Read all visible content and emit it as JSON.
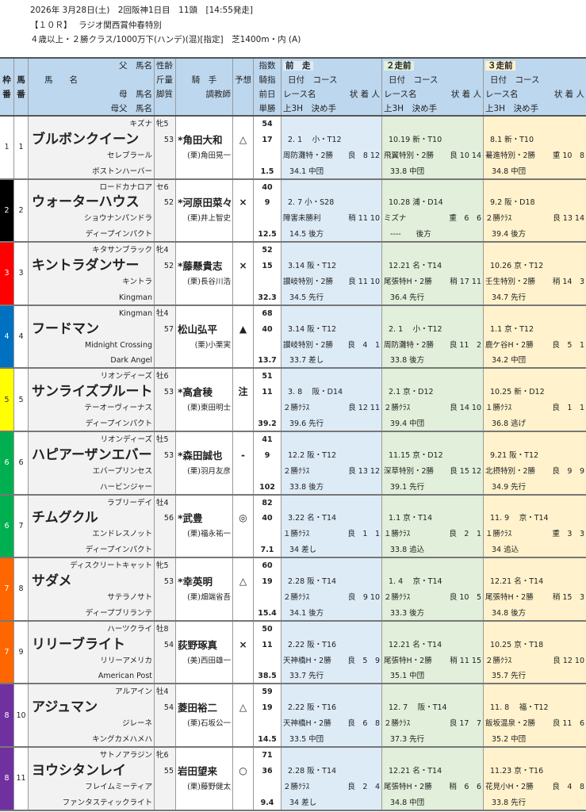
{
  "header": {
    "line1": "2026年 3月28日(土)　2回阪神1日目　11頭　[14:55発走]",
    "line2": "【１０Ｒ】　 ラジオ関西賞仲春特別",
    "line3": "４歳以上・２勝クラス/1000万下(ハンデ)(混)[指定]　芝1400m・内 (A)"
  },
  "columns": {
    "waku": "枠",
    "waku2": "番",
    "uma": "馬",
    "uma2": "番",
    "sire": "父　馬名",
    "name": "馬　　名",
    "dam": "母　馬名",
    "damsire": "母父　馬名",
    "sexage": "性齢",
    "weight": "斤量",
    "style": "脚質",
    "jockey": "騎　手",
    "trainer": "調教師",
    "mark": "予想",
    "index": "指数",
    "jindex": "騎指",
    "prevday": "前日",
    "odds": "単勝",
    "prev": [
      "前　走",
      "２走前",
      "３走前"
    ],
    "datecourse": "日付　コース",
    "racename": "レース名",
    "cond": "状 着 人",
    "f3": "上3H　決め手"
  },
  "colors": {
    "header": "#bdd7ee",
    "prev1": "#ddebf7",
    "prev2": "#e2efda",
    "prev3": "#fff2cc",
    "waku": {
      "1": "#ffffff",
      "2": "#000000",
      "3": "#ff0000",
      "4": "#0070c0",
      "5": "#ffff00",
      "6": "#00b050",
      "7": "#ff6600",
      "8": "#7030a0"
    }
  },
  "horses": [
    {
      "waku": "1",
      "num": "1",
      "sire": "キズナ",
      "sexage": "牝5",
      "name": "ブルボンクイーン",
      "weight": "53",
      "jockey": "*角田大和",
      "dam": "セレブラール",
      "trainer": "(栗)角田晃一",
      "damsire": "ボストンハーバー",
      "mark": "△",
      "index": "54",
      "jindex": "17",
      "odds": "1.5",
      "races": [
        {
          "dc": "2. 1　 小・T12",
          "rn": "周防灘特・2勝",
          "cd": "良　8 12",
          "f3": "34.1 中団"
        },
        {
          "dc": "10.19 新・T10",
          "rn": "飛翼特別・2勝",
          "cd": "良 10 14",
          "f3": "33.8 中団"
        },
        {
          "dc": "8.1 新・T10",
          "rn": "驀進特別・2勝",
          "cd": "重 10　8",
          "f3": "34.8 中団"
        }
      ]
    },
    {
      "waku": "2",
      "num": "2",
      "sire": "ロードカナロア",
      "sexage": "セ6",
      "name": "ウォーターハウス",
      "weight": "52",
      "jockey": "*河原田菜々",
      "dam": "ショウナンパンドラ",
      "trainer": "(栗)井上智史",
      "damsire": "ディープインパクト",
      "mark": "×",
      "index": "40",
      "jindex": "9",
      "odds": "12.5",
      "races": [
        {
          "dc": "2. 7 小・S28",
          "rn": "障害未勝利",
          "cd": "稍 11 10",
          "f3": "14.5 後方"
        },
        {
          "dc": "10.28 浦・D14",
          "rn": "ミズナ",
          "cd": "重　6　6",
          "f3": "----　　後方"
        },
        {
          "dc": "9.2 阪・D18",
          "rn": "２勝ｸﾗｽ",
          "cd": "良 13 14",
          "f3": "39.4 後方"
        }
      ]
    },
    {
      "waku": "3",
      "num": "3",
      "sire": "キタサンブラック",
      "sexage": "牝4",
      "name": "キントラダンサー",
      "weight": "52",
      "jockey": "*藤懸貴志",
      "dam": "キントラ",
      "trainer": "(栗)長谷川浩",
      "damsire": "Kingman",
      "mark": "×",
      "index": "52",
      "jindex": "15",
      "odds": "32.3",
      "races": [
        {
          "dc": "3.14 阪・T12",
          "rn": "讃岐特別・2勝",
          "cd": "良 11 10",
          "f3": "34.5 先行"
        },
        {
          "dc": "12.21 名・T14",
          "rn": "尾張特H・2勝",
          "cd": "稍 17 11",
          "f3": "36.4 先行"
        },
        {
          "dc": "10.26 京・T12",
          "rn": "壬生特別・2勝",
          "cd": "稍 14　3",
          "f3": "34.7 先行"
        }
      ]
    },
    {
      "waku": "4",
      "num": "4",
      "sire": "Kingman",
      "sexage": "牡4",
      "name": "フードマン",
      "weight": "57",
      "jockey": "松山弘平",
      "dam": "Midnight Crossing",
      "trainer": "(栗)小栗実",
      "damsire": "Dark Angel",
      "mark": "▲",
      "index": "68",
      "jindex": "40",
      "odds": "13.7",
      "races": [
        {
          "dc": "3.14 阪・T12",
          "rn": "讃岐特別・2勝",
          "cd": "良　4　1",
          "f3": "33.7 差し"
        },
        {
          "dc": "2. 1　 小・T12",
          "rn": "周防灘特・2勝",
          "cd": "良 11　2",
          "f3": "33.8 後方"
        },
        {
          "dc": "1.1 京・T12",
          "rn": "鹿ケ谷H・2勝",
          "cd": "良　5　1",
          "f3": "34.2 中団"
        }
      ]
    },
    {
      "waku": "5",
      "num": "5",
      "sire": "リオンディーズ",
      "sexage": "牡6",
      "name": "サンライズプルート",
      "weight": "53",
      "jockey": "*高倉稜",
      "dam": "テーオーヴィーナス",
      "trainer": "(栗)東田明士",
      "damsire": "ディープインパクト",
      "mark": "注",
      "index": "51",
      "jindex": "11",
      "odds": "39.2",
      "races": [
        {
          "dc": "3. 8　 阪・D14",
          "rn": "２勝ｸﾗｽ",
          "cd": "良 12 11",
          "f3": "39.6 先行"
        },
        {
          "dc": "2.1 京・D12",
          "rn": "２勝ｸﾗｽ",
          "cd": "良 14 10",
          "f3": "39.4 中団"
        },
        {
          "dc": "10.25 新・D12",
          "rn": "１勝ｸﾗｽ",
          "cd": "良　1　1",
          "f3": "36.8 逃げ"
        }
      ]
    },
    {
      "waku": "6",
      "num": "6",
      "sire": "リオンディーズ",
      "sexage": "牡5",
      "name": "ハピアーザンエバー",
      "weight": "53",
      "jockey": "*森田誠也",
      "dam": "エバープリンセス",
      "trainer": "(栗)羽月友彦",
      "damsire": "ハービンジャー",
      "mark": "-",
      "index": "41",
      "jindex": "9",
      "odds": "102",
      "races": [
        {
          "dc": "12.2 阪・T12",
          "rn": "２勝ｸﾗｽ",
          "cd": "良 13 12",
          "f3": "33.8 後方"
        },
        {
          "dc": "11.15 京・D12",
          "rn": "深草特別・2勝",
          "cd": "良 15 12",
          "f3": "39.1 先行"
        },
        {
          "dc": "9.21 阪・T12",
          "rn": "北摂特別・2勝",
          "cd": "良　9　9",
          "f3": "34.9 先行"
        }
      ]
    },
    {
      "waku": "6",
      "num": "7",
      "sire": "ラブリーデイ",
      "sexage": "牡4",
      "name": "チムグクル",
      "weight": "56",
      "jockey": "*武豊",
      "dam": "エンドレスノット",
      "trainer": "(栗)福永祐一",
      "damsire": "ディープインパクト",
      "mark": "◎",
      "index": "82",
      "jindex": "40",
      "odds": "7.1",
      "races": [
        {
          "dc": "3.22 名・T14",
          "rn": "１勝ｸﾗｽ",
          "cd": "良　1　1",
          "f3": "34 差し"
        },
        {
          "dc": "1.1 京・T14",
          "rn": "１勝ｸﾗｽ",
          "cd": "良　2　1",
          "f3": "33.8 追込"
        },
        {
          "dc": "11. 9　 京・T14",
          "rn": "１勝ｸﾗｽ",
          "cd": "重　3　3",
          "f3": "34 追込"
        }
      ]
    },
    {
      "waku": "7",
      "num": "8",
      "sire": "ディスクリートキャット",
      "sexage": "牝5",
      "name": "サダメ",
      "weight": "53",
      "jockey": "*幸英明",
      "dam": "サテラノサト",
      "trainer": "(栗)畑端省吾",
      "damsire": "ディープブリランテ",
      "mark": "△",
      "index": "60",
      "jindex": "19",
      "odds": "15.4",
      "races": [
        {
          "dc": "2.28 阪・T14",
          "rn": "２勝ｸﾗｽ",
          "cd": "良　9 10",
          "f3": "34.1 後方"
        },
        {
          "dc": "1. 4　 京・T14",
          "rn": "２勝ｸﾗｽ",
          "cd": "良 10　5",
          "f3": "33.3 後方"
        },
        {
          "dc": "12.21 名・T14",
          "rn": "尾張特H・2勝",
          "cd": "稍 15　3",
          "f3": "34.8 後方"
        }
      ]
    },
    {
      "waku": "7",
      "num": "9",
      "sire": "ハーツクライ",
      "sexage": "牡8",
      "name": "リリーブライト",
      "weight": "54",
      "jockey": "荻野琢真",
      "dam": "リリーアメリカ",
      "trainer": "(美)西田雄一",
      "damsire": "American Post",
      "mark": "×",
      "index": "50",
      "jindex": "11",
      "odds": "38.5",
      "races": [
        {
          "dc": "2.22 阪・T16",
          "rn": "天神橋H・2勝",
          "cd": "良　5　9",
          "f3": "33.7 先行"
        },
        {
          "dc": "12.21 名・T14",
          "rn": "尾張特H・2勝",
          "cd": "稍 11 15",
          "f3": "35.1 中団"
        },
        {
          "dc": "10.25 京・T18",
          "rn": "２勝ｸﾗｽ",
          "cd": "良 12 10",
          "f3": "35.7 先行"
        }
      ]
    },
    {
      "waku": "8",
      "num": "10",
      "sire": "アルアイン",
      "sexage": "牡4",
      "name": "アジュマン",
      "weight": "54",
      "jockey": "菱田裕二",
      "dam": "ジレーネ",
      "trainer": "(栗)石坂公一",
      "damsire": "キングカメハメハ",
      "mark": "△",
      "index": "59",
      "jindex": "19",
      "odds": "14.5",
      "races": [
        {
          "dc": "2.22 阪・T16",
          "rn": "天神橋H・2勝",
          "cd": "良　6　8",
          "f3": "33.5 中団"
        },
        {
          "dc": "12. 7　 阪・T14",
          "rn": "２勝ｸﾗｽ",
          "cd": "良 17　7",
          "f3": "37.3 先行"
        },
        {
          "dc": "11. 8　 福・T12",
          "rn": "飯坂温泉・2勝",
          "cd": "良 11　6",
          "f3": "35.2 中団"
        }
      ]
    },
    {
      "waku": "8",
      "num": "11",
      "sire": "サトノアラジン",
      "sexage": "牝6",
      "name": "ヨウシタンレイ",
      "weight": "55",
      "jockey": "岩田望来",
      "dam": "フレイムミーティア",
      "trainer": "(栗)藤野健太",
      "damsire": "ファンタスティックライト",
      "mark": "○",
      "index": "71",
      "jindex": "36",
      "odds": "9.4",
      "races": [
        {
          "dc": "2.28 阪・T14",
          "rn": "２勝ｸﾗｽ",
          "cd": "良　2　4",
          "f3": "34 差し"
        },
        {
          "dc": "12.21 名・T14",
          "rn": "尾張特H・2勝",
          "cd": "稍　6　6",
          "f3": "34.8 中団"
        },
        {
          "dc": "11.23 京・T16",
          "rn": "花見小H・2勝",
          "cd": "良　4　8",
          "f3": "33.8 先行"
        }
      ]
    }
  ]
}
